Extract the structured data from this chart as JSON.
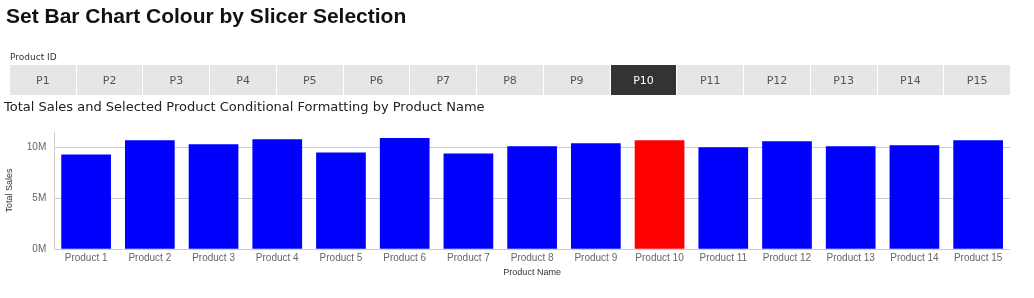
{
  "chart_data": [
    {
      "type": "other",
      "title": "Set Bar Chart Colour by Slicer Selection",
      "subtitle": "Product ID",
      "categories": [
        "P1",
        "P2",
        "P3",
        "P4",
        "P5",
        "P6",
        "P7",
        "P8",
        "P9",
        "P10",
        "P11",
        "P12",
        "P13",
        "P14",
        "P15"
      ],
      "colors": [
        "#e6e6e6",
        "#e6e6e6",
        "#e6e6e6",
        "#e6e6e6",
        "#e6e6e6",
        "#e6e6e6",
        "#e6e6e6",
        "#e6e6e6",
        "#e6e6e6",
        "#333333",
        "#e6e6e6",
        "#e6e6e6",
        "#e6e6e6",
        "#e6e6e6",
        "#e6e6e6"
      ]
    },
    {
      "type": "bar",
      "title": "Total Sales and Selected Product Conditional Formatting by Product Name",
      "xlabel": "Product Name",
      "ylabel": "Total Sales",
      "categories": [
        "Product 1",
        "Product 2",
        "Product 3",
        "Product 4",
        "Product 5",
        "Product 6",
        "Product 7",
        "Product 8",
        "Product 9",
        "Product 10",
        "Product 11",
        "Product 12",
        "Product 13",
        "Product 14",
        "Product 15"
      ],
      "values": [
        9300000,
        10700000,
        10300000,
        10800000,
        9500000,
        10900000,
        9400000,
        10100000,
        10400000,
        10700000,
        10000000,
        10600000,
        10100000,
        10200000,
        10700000
      ],
      "colors": [
        "#0000ff",
        "#0000ff",
        "#0000ff",
        "#0000ff",
        "#0000ff",
        "#0000ff",
        "#0000ff",
        "#0000ff",
        "#0000ff",
        "#ff0000",
        "#0000ff",
        "#0000ff",
        "#0000ff",
        "#0000ff",
        "#0000ff"
      ],
      "ylim": [
        0,
        11500000
      ],
      "yticks": [
        {
          "value": 0,
          "label": "0M"
        },
        {
          "value": 5000000,
          "label": "5M"
        },
        {
          "value": 10000000,
          "label": "10M"
        }
      ],
      "grid": "y",
      "legend": false
    }
  ]
}
